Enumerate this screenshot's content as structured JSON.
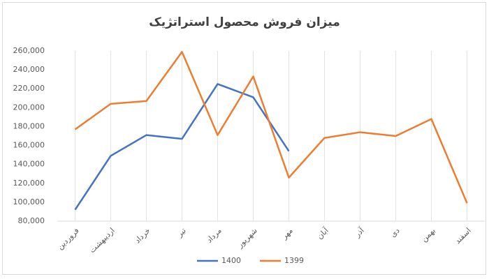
{
  "chart_data": {
    "type": "line",
    "title": "میزان فروش محصول استراتژیک",
    "categories": [
      "فروردین",
      "اردیبهشت",
      "خرداد",
      "تیر",
      "مرداد",
      "شهریور",
      "مهر",
      "آبان",
      "آذر",
      "دی",
      "بهمن",
      "اسفند"
    ],
    "series": [
      {
        "name": "1400",
        "color": "#4472c4",
        "values": [
          92000,
          149000,
          171000,
          167000,
          225000,
          211000,
          154000,
          null,
          null,
          null,
          null,
          null
        ]
      },
      {
        "name": "1399",
        "color": "#ed7d31",
        "values": [
          177000,
          204000,
          207000,
          259000,
          171000,
          233000,
          126000,
          168000,
          174000,
          170000,
          188000,
          99000
        ]
      }
    ],
    "ylim": [
      80000,
      260000
    ],
    "yticks": [
      {
        "value": 80000,
        "label": "80,000"
      },
      {
        "value": 100000,
        "label": "100,000"
      },
      {
        "value": 120000,
        "label": "120,000"
      },
      {
        "value": 140000,
        "label": "140,000"
      },
      {
        "value": 160000,
        "label": "160,000"
      },
      {
        "value": 180000,
        "label": "180,000"
      },
      {
        "value": 200000,
        "label": "200,000"
      },
      {
        "value": 220000,
        "label": "220,000"
      },
      {
        "value": 240000,
        "label": "240,000"
      },
      {
        "value": 260000,
        "label": "260,000"
      }
    ],
    "grid": "x",
    "legend": "bottom"
  }
}
